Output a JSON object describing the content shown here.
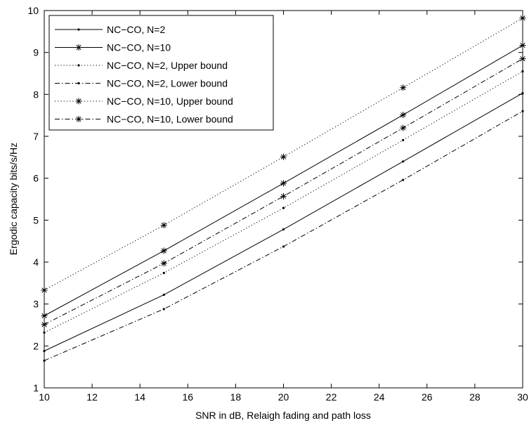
{
  "chart_data": {
    "type": "line",
    "title": "",
    "xlabel": "SNR in dB, Relaigh fading and path loss",
    "ylabel": "Ergodic capacity bits/s/Hz",
    "xlim": [
      10,
      30
    ],
    "ylim": [
      1,
      10
    ],
    "xticks": [
      10,
      12,
      14,
      16,
      18,
      20,
      22,
      24,
      26,
      28,
      30
    ],
    "yticks": [
      1,
      2,
      3,
      4,
      5,
      6,
      7,
      8,
      9,
      10
    ],
    "grid": false,
    "legend_position": "top-left",
    "x": [
      10,
      15,
      20,
      25,
      30
    ],
    "series": [
      {
        "name": "NC−CO, N=2",
        "values": [
          1.88,
          3.22,
          4.78,
          6.4,
          8.03
        ],
        "line": "solid",
        "marker": "dot"
      },
      {
        "name": "NC−CO, N=10",
        "values": [
          2.72,
          4.27,
          5.88,
          7.51,
          9.17
        ],
        "line": "solid",
        "marker": "star"
      },
      {
        "name": "NC−CO, N=2, Upper bound",
        "values": [
          2.32,
          3.74,
          5.29,
          6.91,
          8.55
        ],
        "line": "dotted",
        "marker": "dot"
      },
      {
        "name": "NC−CO, N=2, Lower bound",
        "values": [
          1.65,
          2.88,
          4.37,
          5.96,
          7.6
        ],
        "line": "dashdot",
        "marker": "dot"
      },
      {
        "name": "NC−CO, N=10, Upper bound",
        "values": [
          3.33,
          4.88,
          6.51,
          8.16,
          9.82
        ],
        "line": "dotted",
        "marker": "star"
      },
      {
        "name": "NC−CO, N=10, Lower bound",
        "values": [
          2.51,
          3.97,
          5.57,
          7.2,
          8.85
        ],
        "line": "dashdot",
        "marker": "star"
      }
    ]
  }
}
